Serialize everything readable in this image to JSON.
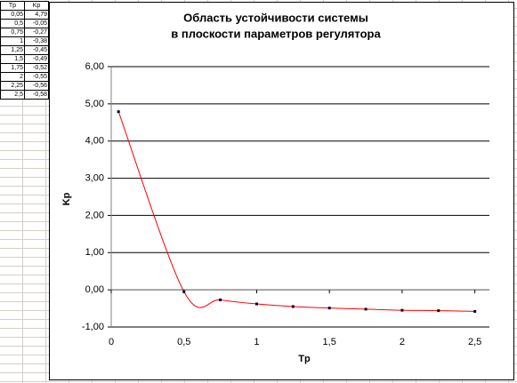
{
  "table": {
    "header": [
      "Tp",
      "Kp"
    ],
    "rows": [
      [
        "0,05",
        "4,79"
      ],
      [
        "0,5",
        "-0,05"
      ],
      [
        "0,75",
        "-0,27"
      ],
      [
        "1",
        "-0,38"
      ],
      [
        "1,25",
        "-0,45"
      ],
      [
        "1,5",
        "-0,49"
      ],
      [
        "1,75",
        "-0,52"
      ],
      [
        "2",
        "-0,55"
      ],
      [
        "2,25",
        "-0,56"
      ],
      [
        "2,5",
        "-0,58"
      ]
    ]
  },
  "chart_data": {
    "type": "line",
    "title": [
      "Область устойчивости системы",
      "в плоскости параметров регулятора"
    ],
    "x_label": "Tp",
    "y_label": "Kp",
    "x": [
      0.05,
      0.5,
      0.75,
      1,
      1.25,
      1.5,
      1.75,
      2,
      2.25,
      2.5
    ],
    "series": [
      {
        "name": "Kp",
        "color": "#ff0000",
        "marker_color": "#000033",
        "values": [
          4.79,
          -0.05,
          -0.27,
          -0.38,
          -0.45,
          -0.49,
          -0.52,
          -0.55,
          -0.56,
          -0.58
        ]
      }
    ],
    "xlim": [
      0,
      2.6
    ],
    "ylim": [
      -1,
      6
    ],
    "xticks": [
      0,
      {
        "value": 0.5,
        "label": "0,5"
      },
      1,
      {
        "value": 1.5,
        "label": "1,5"
      },
      2,
      {
        "value": 2.5,
        "label": "2,5"
      }
    ],
    "yticks": [
      {
        "value": 6,
        "label": "6,00"
      },
      {
        "value": 5,
        "label": "5,00"
      },
      {
        "value": 4,
        "label": "4,00"
      },
      {
        "value": 3,
        "label": "3,00"
      },
      {
        "value": 2,
        "label": "2,00"
      },
      {
        "value": 1,
        "label": "1,00"
      },
      {
        "value": 0,
        "label": "0,00"
      },
      {
        "value": -1,
        "label": "-1,00"
      }
    ],
    "grid": true
  }
}
